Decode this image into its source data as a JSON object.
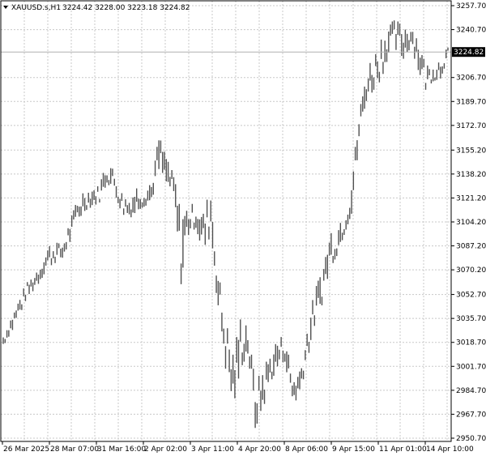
{
  "header": {
    "symbol": "XAUUSD.s,H1",
    "ohlc": "3224.42 3228.00 3223.18 3224.82",
    "menu_icon": "triangle-down-icon"
  },
  "chart_data": {
    "type": "ohlc-bar",
    "title": "XAUUSD.s,H1",
    "ylim": [
      2950.7,
      3257.7
    ],
    "grid": true,
    "current_price": "3224.82",
    "yticks": [
      "3257.70",
      "3240.70",
      "3206.70",
      "3189.70",
      "3172.70",
      "3155.20",
      "3138.20",
      "3121.20",
      "3104.20",
      "3087.20",
      "3070.20",
      "3052.70",
      "3035.70",
      "3018.70",
      "3001.70",
      "2984.70",
      "2967.70",
      "2950.70"
    ],
    "ytick_values": [
      3257.7,
      3240.7,
      3206.7,
      3189.7,
      3172.7,
      3155.2,
      3138.2,
      3121.2,
      3104.2,
      3087.2,
      3070.2,
      3052.7,
      3035.7,
      3018.7,
      3001.7,
      2984.7,
      2967.7,
      2950.7
    ],
    "xticks": [
      "26 Mar 2025",
      "28 Mar 07:00",
      "31 Mar 16:00",
      "2 Apr 02:00",
      "3 Apr 11:00",
      "4 Apr 20:00",
      "8 Apr 06:00",
      "9 Apr 15:00",
      "11 Apr 01:00",
      "14 Apr 10:00"
    ],
    "price_path": [
      [
        3016,
        3024
      ],
      [
        3025,
        3036
      ],
      [
        3035,
        3048
      ],
      [
        3048,
        3060
      ],
      [
        3055,
        3066
      ],
      [
        3062,
        3076
      ],
      [
        3072,
        3086
      ],
      [
        3075,
        3090
      ],
      [
        3078,
        3088
      ],
      [
        3090,
        3105
      ],
      [
        3105,
        3120
      ],
      [
        3112,
        3126
      ],
      [
        3115,
        3128
      ],
      [
        3118,
        3130
      ],
      [
        3132,
        3148
      ],
      [
        3125,
        3140
      ],
      [
        3110,
        3125
      ],
      [
        3106,
        3122
      ],
      [
        3112,
        3128
      ],
      [
        3115,
        3130
      ],
      [
        3118,
        3132
      ],
      [
        3140,
        3166
      ],
      [
        3130,
        3150
      ],
      [
        3118,
        3138
      ],
      [
        3060,
        3110
      ],
      [
        3095,
        3118
      ],
      [
        3100,
        3116
      ],
      [
        3082,
        3110
      ],
      [
        3095,
        3130
      ],
      [
        3040,
        3070
      ],
      [
        3000,
        3035
      ],
      [
        2972,
        3010
      ],
      [
        3000,
        3035
      ],
      [
        3010,
        3030
      ],
      [
        2958,
        2990
      ],
      [
        2970,
        3000
      ],
      [
        2990,
        3010
      ],
      [
        3000,
        3020
      ],
      [
        3005,
        3025
      ],
      [
        2975,
        2995
      ],
      [
        2980,
        3000
      ],
      [
        3005,
        3030
      ],
      [
        3030,
        3055
      ],
      [
        3045,
        3070
      ],
      [
        3070,
        3095
      ],
      [
        3080,
        3100
      ],
      [
        3095,
        3110
      ],
      [
        3110,
        3135
      ],
      [
        3160,
        3180
      ],
      [
        3190,
        3212
      ],
      [
        3198,
        3222
      ],
      [
        3205,
        3235
      ],
      [
        3222,
        3245
      ],
      [
        3225,
        3248
      ],
      [
        3220,
        3242
      ],
      [
        3228,
        3248
      ],
      [
        3212,
        3235
      ],
      [
        3198,
        3215
      ],
      [
        3204,
        3216
      ],
      [
        3206,
        3222
      ],
      [
        3220,
        3228
      ]
    ]
  }
}
